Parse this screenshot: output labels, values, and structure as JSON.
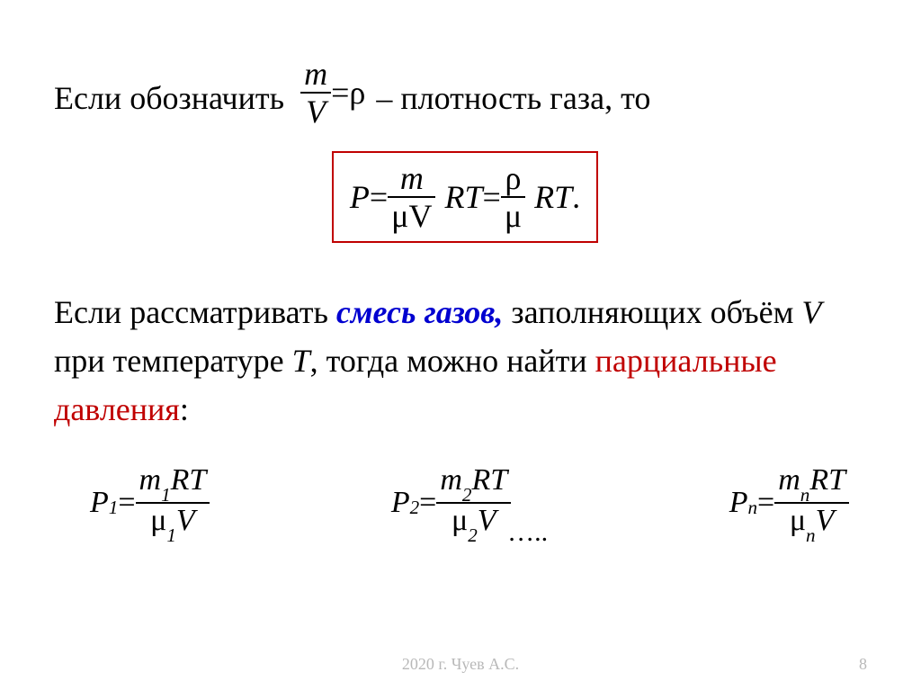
{
  "colors": {
    "text": "#000000",
    "box_border": "#c00000",
    "blue": "#0000d0",
    "red": "#c00000",
    "footer": "#b8b8b8",
    "background": "#ffffff"
  },
  "typography": {
    "body_fontsize_pt": 27,
    "formula_fontsize_pt": 27,
    "footer_fontsize_pt": 13,
    "font_family": "Times New Roman"
  },
  "line1": {
    "prefix": "Если обозначить",
    "frac_num": "m",
    "frac_den": "V",
    "equals": " = ",
    "rho": "ρ",
    "suffix": " – плотность газа, то"
  },
  "boxed": {
    "P": "P",
    "eq": " = ",
    "frac1_num": "m",
    "frac1_den": "μV",
    "RT": "RT",
    "eq2": " = ",
    "frac2_num": "ρ",
    "frac2_den": "μ",
    "RT2": "RT",
    "period": "."
  },
  "para2": {
    "t1": "Если рассматривать ",
    "t2_blue": "смесь газов,",
    "t3": " заполняющих объём ",
    "V": "V",
    "t4": " при температуре ",
    "T": "T",
    "t5": ", тогда можно найти ",
    "t6_red": "парциальные давления",
    "t7": ":"
  },
  "formulas": {
    "f1": {
      "lhs_base": "P",
      "lhs_sub": "1",
      "num_m": "m",
      "num_sub": "1",
      "num_RT": "RT",
      "den_mu": "μ",
      "den_sub": "1",
      "den_V": "V"
    },
    "f2": {
      "lhs_base": "P",
      "lhs_sub": "2",
      "num_m": "m",
      "num_sub": "2",
      "num_RT": "RT",
      "den_mu": "μ",
      "den_sub": "2",
      "den_V": "V"
    },
    "dots": "…..",
    "fn": {
      "lhs_base": "P",
      "lhs_sub": "n",
      "num_m": "m",
      "num_sub": "n",
      "num_RT": "RT",
      "den_mu": "μ",
      "den_sub": "n",
      "den_V": "V"
    },
    "eq": " = "
  },
  "footer": {
    "text": "2020 г. Чуев А.С.",
    "page": "8"
  }
}
